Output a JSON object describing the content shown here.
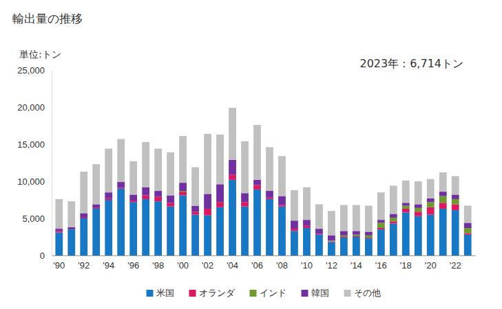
{
  "chart_data": {
    "type": "bar",
    "stacked": true,
    "title": "輸出量の推移",
    "y_label": "単位:トン",
    "annotation": "2023年：6,714トン",
    "legend": "bottom",
    "grid": false,
    "categories": [
      "'90",
      null,
      "'92",
      null,
      "'94",
      null,
      "'96",
      null,
      "'98",
      null,
      "'00",
      null,
      "'02",
      null,
      "'04",
      null,
      "'06",
      null,
      "'08",
      null,
      "'10",
      null,
      "'12",
      null,
      "'14",
      null,
      "'16",
      null,
      "'18",
      null,
      "'20",
      null,
      "'22",
      null
    ],
    "series": [
      {
        "name": "米国",
        "color": "#1878c4",
        "values": [
          3100,
          3500,
          5000,
          6300,
          7500,
          9000,
          7200,
          7600,
          7300,
          6600,
          8100,
          5500,
          5400,
          6500,
          10200,
          6600,
          8900,
          7600,
          6600,
          3300,
          3700,
          2800,
          1800,
          2400,
          2500,
          2300,
          3500,
          4300,
          5800,
          5300,
          5500,
          6300,
          6100,
          2800
        ]
      },
      {
        "name": "オランダ",
        "color": "#d81b60",
        "values": [
          200,
          0,
          100,
          100,
          200,
          100,
          200,
          500,
          600,
          500,
          500,
          400,
          900,
          700,
          700,
          600,
          600,
          200,
          200,
          300,
          300,
          100,
          100,
          100,
          100,
          100,
          200,
          300,
          500,
          600,
          1000,
          800,
          800,
          200
        ]
      },
      {
        "name": "インド",
        "color": "#6f9a2f",
        "values": [
          0,
          0,
          0,
          0,
          0,
          0,
          0,
          0,
          0,
          0,
          100,
          0,
          0,
          0,
          0,
          0,
          0,
          0,
          0,
          0,
          0,
          0,
          100,
          200,
          200,
          300,
          700,
          500,
          400,
          500,
          700,
          900,
          700,
          700
        ]
      },
      {
        "name": "韓国",
        "color": "#7030a0",
        "values": [
          300,
          300,
          600,
          500,
          800,
          800,
          800,
          1100,
          800,
          1000,
          1100,
          800,
          2000,
          2400,
          2000,
          1200,
          700,
          900,
          1200,
          1100,
          800,
          700,
          700,
          600,
          500,
          500,
          400,
          500,
          400,
          500,
          500,
          600,
          600,
          700
        ]
      },
      {
        "name": "その他",
        "color": "#c0c0c0",
        "values": [
          4000,
          3500,
          5600,
          5400,
          5900,
          5800,
          4500,
          6100,
          5700,
          5800,
          6300,
          5200,
          8100,
          6700,
          7000,
          7000,
          7400,
          5900,
          5400,
          4100,
          4400,
          3300,
          3300,
          3500,
          3500,
          3500,
          3700,
          3800,
          3000,
          3100,
          2600,
          2600,
          2500,
          2314
        ]
      }
    ],
    "ylim": [
      0,
      25000
    ],
    "yticks": [
      0,
      {
        "value": 5000,
        "label": "5,000"
      },
      {
        "value": 10000,
        "label": "10,000"
      },
      {
        "value": 15000,
        "label": "15,000"
      },
      {
        "value": 20000,
        "label": "20,000"
      },
      {
        "value": 25000,
        "label": "25,000"
      }
    ]
  }
}
